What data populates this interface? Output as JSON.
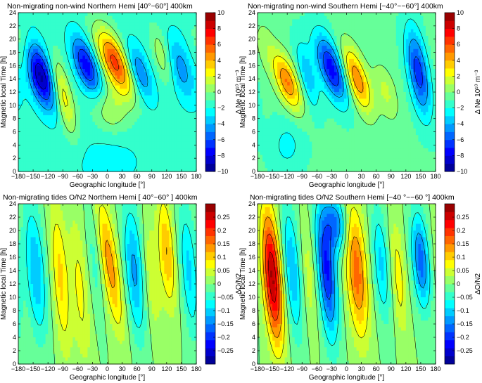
{
  "chart_data": [
    {
      "id": "ne_north",
      "type": "heatmap",
      "title": "Non-migrating non-wind Northern Hemi [40°~60°] 400km",
      "xlabel": "Geographic longitude [°]",
      "ylabel": "Magnetic local Time [h]",
      "xlim": [
        -180,
        180
      ],
      "ylim": [
        0,
        24
      ],
      "xticks": [
        -180,
        -150,
        -120,
        -90,
        -60,
        -30,
        0,
        30,
        60,
        90,
        120,
        150,
        180
      ],
      "xtick_labels": [
        "−180",
        "−150",
        "−120",
        "−90",
        "−60",
        "−30",
        "0",
        "30",
        "60",
        "90",
        "120",
        "150",
        "180"
      ],
      "yticks": [
        0,
        2,
        4,
        6,
        8,
        10,
        12,
        14,
        16,
        18,
        20,
        22,
        24
      ],
      "colorbar": {
        "label": "Δ Ne 10¹⁰ m⁻³",
        "range": [
          -10,
          10
        ],
        "ticks": [
          10,
          8,
          6,
          4,
          2,
          0,
          -2,
          -4,
          -6,
          -8,
          -10
        ],
        "tick_labels": [
          "10",
          "8",
          "6",
          "4",
          "2",
          "0",
          "−2",
          "−4",
          "−6",
          "−8",
          "−10"
        ]
      },
      "blobs": [
        {
          "lon": -135,
          "mlt": 14.5,
          "amplitude": -8.0,
          "lon_width": 18,
          "mlt_width": 3.5,
          "tilt": 0.18
        },
        {
          "lon": -90,
          "mlt": 11.5,
          "amplitude": 4.5,
          "lon_width": 13,
          "mlt_width": 4.0,
          "tilt": 0.15
        },
        {
          "lon": -42,
          "mlt": 16.0,
          "amplitude": -6.5,
          "lon_width": 16,
          "mlt_width": 3.0,
          "tilt": 0.2
        },
        {
          "lon": 15,
          "mlt": 16.5,
          "amplitude": 8.0,
          "lon_width": 20,
          "mlt_width": 3.5,
          "tilt": 0.25
        },
        {
          "lon": 5,
          "mlt": 9.5,
          "amplitude": 2.5,
          "lon_width": 25,
          "mlt_width": 2.5,
          "tilt": 0.1
        },
        {
          "lon": 65,
          "mlt": 15.0,
          "amplitude": -4.0,
          "lon_width": 15,
          "mlt_width": 3.0,
          "tilt": 0.2
        },
        {
          "lon": 110,
          "mlt": 17.5,
          "amplitude": 2.5,
          "lon_width": 12,
          "mlt_width": 3.0,
          "tilt": 0.15
        },
        {
          "lon": 150,
          "mlt": 15.5,
          "amplitude": -3.0,
          "lon_width": 18,
          "mlt_width": 3.5,
          "tilt": 0.15
        },
        {
          "lon": -170,
          "mlt": 18.5,
          "amplitude": 2.0,
          "lon_width": 15,
          "mlt_width": 3.0,
          "tilt": 0.1
        },
        {
          "lon": 0,
          "mlt": 1.5,
          "amplitude": -1.2,
          "lon_width": 45,
          "mlt_width": 2.5,
          "tilt": 0
        }
      ],
      "background": -1.5
    },
    {
      "id": "ne_south",
      "type": "heatmap",
      "title": "Non-migrating non-wind Southern Hemi [−40°~−60°] 400km",
      "xlabel": "Geographic longitude [°]",
      "ylabel": "Magnetic local Time [h]",
      "xlim": [
        -180,
        180
      ],
      "ylim": [
        0,
        24
      ],
      "xticks": [
        -180,
        -150,
        -120,
        -90,
        -60,
        -30,
        0,
        30,
        60,
        90,
        120,
        150,
        180
      ],
      "xtick_labels": [
        "−180",
        "−150",
        "−120",
        "−90",
        "−60",
        "−30",
        "0",
        "30",
        "60",
        "90",
        "120",
        "150",
        "180"
      ],
      "yticks": [
        0,
        2,
        4,
        6,
        8,
        10,
        12,
        14,
        16,
        18,
        20,
        22,
        24
      ],
      "colorbar": {
        "label": "Δ Ne 10¹⁰ m⁻³",
        "range": [
          -10,
          10
        ],
        "ticks": [
          10,
          8,
          6,
          4,
          2,
          0,
          -2,
          -4,
          -6,
          -8,
          -10
        ],
        "tick_labels": [
          "10",
          "8",
          "6",
          "4",
          "2",
          "0",
          "−2",
          "−4",
          "−6",
          "−8",
          "−10"
        ]
      },
      "blobs": [
        {
          "lon": -120,
          "mlt": 13.5,
          "amplitude": 6.0,
          "lon_width": 16,
          "mlt_width": 3.0,
          "tilt": 0.2
        },
        {
          "lon": -80,
          "mlt": 14.5,
          "amplitude": -3.0,
          "lon_width": 12,
          "mlt_width": 3.5,
          "tilt": 0.15
        },
        {
          "lon": -30,
          "mlt": 15.5,
          "amplitude": -7.0,
          "lon_width": 18,
          "mlt_width": 3.5,
          "tilt": 0.2
        },
        {
          "lon": 20,
          "mlt": 14.0,
          "amplitude": 6.0,
          "lon_width": 16,
          "mlt_width": 3.5,
          "tilt": 0.2
        },
        {
          "lon": 80,
          "mlt": 12.0,
          "amplitude": 2.0,
          "lon_width": 15,
          "mlt_width": 3.0,
          "tilt": 0.15
        },
        {
          "lon": 145,
          "mlt": 15.0,
          "amplitude": -6.0,
          "lon_width": 14,
          "mlt_width": 4.5,
          "tilt": 0.1
        },
        {
          "lon": -165,
          "mlt": 19.0,
          "amplitude": 1.2,
          "lon_width": 15,
          "mlt_width": 3.0,
          "tilt": 0.1
        },
        {
          "lon": -120,
          "mlt": 4.0,
          "amplitude": -1.5,
          "lon_width": 25,
          "mlt_width": 3.0,
          "tilt": 0
        }
      ],
      "background": -0.8
    },
    {
      "id": "on2_north",
      "type": "heatmap",
      "title": "Non-migrating tides  O/N2  Northern Hemi [ 40°~60° ] 400km",
      "xlabel": "Geographic longitude [°]",
      "ylabel": "Magnetic local Time [h]",
      "xlim": [
        -180,
        180
      ],
      "ylim": [
        0,
        24
      ],
      "xticks": [
        -180,
        -150,
        -120,
        -90,
        -60,
        -30,
        0,
        30,
        60,
        90,
        120,
        150,
        180
      ],
      "xtick_labels": [
        "−180",
        "−150",
        "−120",
        "−90",
        "−60",
        "−30",
        "0",
        "30",
        "60",
        "90",
        "120",
        "150",
        "180"
      ],
      "yticks": [
        0,
        2,
        4,
        6,
        8,
        10,
        12,
        14,
        16,
        18,
        20,
        22,
        24
      ],
      "colorbar": {
        "label": "ΔO/N2",
        "range": [
          -0.3,
          0.3
        ],
        "ticks": [
          0.25,
          0.2,
          0.15,
          0.1,
          0.05,
          0,
          -0.05,
          -0.1,
          -0.15,
          -0.2,
          -0.25
        ],
        "tick_labels": [
          "0.25",
          "0.2",
          "0.15",
          "0.1",
          "0.05",
          "0",
          "−0.05",
          "−0.1",
          "−0.15",
          "−0.2",
          "−0.25"
        ]
      },
      "blobs": [
        {
          "lon": -145,
          "mlt": 14.0,
          "amplitude": -0.12,
          "lon_width": 14,
          "mlt_width": 7.0,
          "tilt": 0.05
        },
        {
          "lon": -95,
          "mlt": 13.0,
          "amplitude": 0.1,
          "lon_width": 12,
          "mlt_width": 8.0,
          "tilt": 0.05
        },
        {
          "lon": -55,
          "mlt": 11.0,
          "amplitude": 0.07,
          "lon_width": 12,
          "mlt_width": 8.0,
          "tilt": 0.05
        },
        {
          "lon": -25,
          "mlt": 16.0,
          "amplitude": -0.05,
          "lon_width": 10,
          "mlt_width": 6.0,
          "tilt": 0.05
        },
        {
          "lon": 5,
          "mlt": 15.0,
          "amplitude": 0.14,
          "lon_width": 13,
          "mlt_width": 7.0,
          "tilt": 0.1
        },
        {
          "lon": 55,
          "mlt": 14.0,
          "amplitude": -0.13,
          "lon_width": 14,
          "mlt_width": 7.0,
          "tilt": 0.05
        },
        {
          "lon": 90,
          "mlt": 13.0,
          "amplitude": 0.06,
          "lon_width": 12,
          "mlt_width": 6.0,
          "tilt": 0.05
        },
        {
          "lon": 120,
          "mlt": 17.0,
          "amplitude": 0.12,
          "lon_width": 11,
          "mlt_width": 6.0,
          "tilt": 0.05
        },
        {
          "lon": 165,
          "mlt": 14.0,
          "amplitude": -0.1,
          "lon_width": 12,
          "mlt_width": 7.0,
          "tilt": 0.05
        }
      ],
      "background": 0.0
    },
    {
      "id": "on2_south",
      "type": "heatmap",
      "title": "Non-migrating tides O/N2 Southern Hemi [−40 °~−60 °] 400km",
      "xlabel": "Geographic longitude [°]",
      "ylabel": "Magnetic local Time [h]",
      "xlim": [
        -180,
        180
      ],
      "ylim": [
        0,
        24
      ],
      "xticks": [
        -180,
        -150,
        -120,
        -90,
        -60,
        -30,
        0,
        30,
        60,
        90,
        120,
        150,
        180
      ],
      "xtick_labels": [
        "−180",
        "−150",
        "−120",
        "−90",
        "−60",
        "−30",
        "0",
        "30",
        "60",
        "90",
        "120",
        "150",
        "180"
      ],
      "yticks": [
        0,
        2,
        4,
        6,
        8,
        10,
        12,
        14,
        16,
        18,
        20,
        22,
        24
      ],
      "colorbar": {
        "label": "ΔO/N2",
        "range": [
          -0.3,
          0.3
        ],
        "ticks": [
          0.25,
          0.2,
          0.15,
          0.1,
          0.05,
          0,
          -0.05,
          -0.1,
          -0.15,
          -0.2,
          -0.25
        ],
        "tick_labels": [
          "0.25",
          "0.2",
          "0.15",
          "0.1",
          "0.05",
          "0",
          "−0.05",
          "−0.1",
          "−0.15",
          "−0.2",
          "−0.25"
        ]
      },
      "blobs": [
        {
          "lon": -150,
          "mlt": 13.0,
          "amplitude": 0.28,
          "lon_width": 13,
          "mlt_width": 7.0,
          "tilt": 0.05
        },
        {
          "lon": -110,
          "mlt": 14.0,
          "amplitude": -0.12,
          "lon_width": 12,
          "mlt_width": 7.0,
          "tilt": 0.05
        },
        {
          "lon": -75,
          "mlt": 13.0,
          "amplitude": 0.05,
          "lon_width": 10,
          "mlt_width": 6.0,
          "tilt": 0.05
        },
        {
          "lon": -40,
          "mlt": 14.0,
          "amplitude": -0.22,
          "lon_width": 13,
          "mlt_width": 7.0,
          "tilt": 0.05
        },
        {
          "lon": 20,
          "mlt": 14.0,
          "amplitude": 0.17,
          "lon_width": 15,
          "mlt_width": 7.0,
          "tilt": 0.05
        },
        {
          "lon": 70,
          "mlt": 15.0,
          "amplitude": -0.1,
          "lon_width": 12,
          "mlt_width": 6.0,
          "tilt": 0.05
        },
        {
          "lon": 105,
          "mlt": 13.0,
          "amplitude": 0.08,
          "lon_width": 10,
          "mlt_width": 6.0,
          "tilt": 0.05
        },
        {
          "lon": 150,
          "mlt": 15.5,
          "amplitude": -0.17,
          "lon_width": 12,
          "mlt_width": 5.0,
          "tilt": 0.05
        },
        {
          "lon": -20,
          "mlt": 21.0,
          "amplitude": -0.15,
          "lon_width": 15,
          "mlt_width": 3.0,
          "tilt": 0.05
        }
      ],
      "background": 0.0
    }
  ]
}
